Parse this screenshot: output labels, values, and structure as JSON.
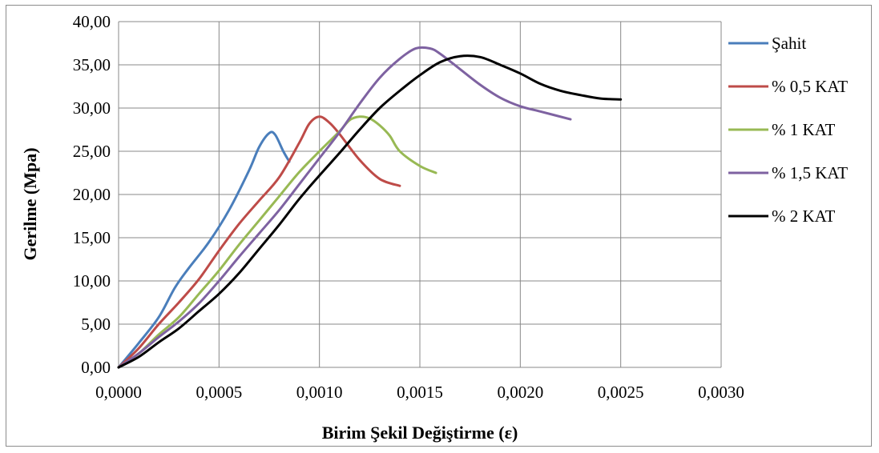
{
  "chart_data": {
    "type": "line",
    "title": "",
    "xlabel": "Birim Şekil Değiştirme (ε)",
    "ylabel": "Gerilme (Mpa)",
    "xlim": [
      0,
      0.003
    ],
    "ylim": [
      0,
      40
    ],
    "x_ticks": [
      0,
      0.0005,
      0.001,
      0.0015,
      0.002,
      0.0025,
      0.003
    ],
    "x_tick_labels": [
      "0,0000",
      "0,0005",
      "0,0010",
      "0,0015",
      "0,0020",
      "0,0025",
      "0,0030"
    ],
    "y_ticks": [
      0,
      5,
      10,
      15,
      20,
      25,
      30,
      35,
      40
    ],
    "y_tick_labels": [
      "0,00",
      "5,00",
      "10,00",
      "15,00",
      "20,00",
      "25,00",
      "30,00",
      "35,00",
      "40,00"
    ],
    "grid": true,
    "legend_position": "right",
    "series": [
      {
        "name": "Şahit",
        "color": "#4a7ebb",
        "points": [
          [
            0,
            0
          ],
          [
            0.0001,
            2.8
          ],
          [
            0.0002,
            5.8
          ],
          [
            0.00028,
            9.2
          ],
          [
            0.00035,
            11.5
          ],
          [
            0.00045,
            14.5
          ],
          [
            0.00055,
            18.2
          ],
          [
            0.00065,
            22.8
          ],
          [
            0.0007,
            25.5
          ],
          [
            0.00075,
            27.1
          ],
          [
            0.00078,
            26.9
          ],
          [
            0.00082,
            25.0
          ],
          [
            0.00085,
            23.8
          ]
        ]
      },
      {
        "name": "% 0,5 KAT",
        "color": "#be4b48",
        "points": [
          [
            0,
            0
          ],
          [
            0.0001,
            2.2
          ],
          [
            0.0002,
            5.0
          ],
          [
            0.0003,
            7.5
          ],
          [
            0.0004,
            10.2
          ],
          [
            0.0005,
            13.5
          ],
          [
            0.0006,
            16.6
          ],
          [
            0.0007,
            19.3
          ],
          [
            0.0008,
            22.0
          ],
          [
            0.0009,
            26.0
          ],
          [
            0.00095,
            28.2
          ],
          [
            0.001,
            29.0
          ],
          [
            0.00105,
            28.3
          ],
          [
            0.0011,
            27.0
          ],
          [
            0.0012,
            24.0
          ],
          [
            0.0013,
            21.8
          ],
          [
            0.0014,
            21.0
          ]
        ]
      },
      {
        "name": "% 1 KAT",
        "color": "#98b954",
        "points": [
          [
            0,
            0
          ],
          [
            0.0001,
            1.6
          ],
          [
            0.0002,
            3.8
          ],
          [
            0.0003,
            5.8
          ],
          [
            0.0004,
            8.5
          ],
          [
            0.0005,
            11.2
          ],
          [
            0.0006,
            14.2
          ],
          [
            0.0007,
            17.0
          ],
          [
            0.0008,
            19.8
          ],
          [
            0.0009,
            22.6
          ],
          [
            0.001,
            25.0
          ],
          [
            0.0011,
            27.3
          ],
          [
            0.00115,
            28.6
          ],
          [
            0.0012,
            29.0
          ],
          [
            0.00125,
            28.8
          ],
          [
            0.0013,
            28.0
          ],
          [
            0.00135,
            26.8
          ],
          [
            0.0014,
            25.0
          ],
          [
            0.0015,
            23.3
          ],
          [
            0.00158,
            22.5
          ]
        ]
      },
      {
        "name": "% 1,5 KAT",
        "color": "#7e62a1",
        "points": [
          [
            0,
            0
          ],
          [
            0.0001,
            1.6
          ],
          [
            0.0002,
            3.5
          ],
          [
            0.0003,
            5.3
          ],
          [
            0.0004,
            7.4
          ],
          [
            0.0005,
            10.0
          ],
          [
            0.0006,
            12.8
          ],
          [
            0.0007,
            15.5
          ],
          [
            0.0008,
            18.2
          ],
          [
            0.0009,
            21.2
          ],
          [
            0.001,
            24.2
          ],
          [
            0.0011,
            27.2
          ],
          [
            0.0012,
            30.5
          ],
          [
            0.0013,
            33.5
          ],
          [
            0.0014,
            35.7
          ],
          [
            0.00148,
            36.9
          ],
          [
            0.00155,
            36.9
          ],
          [
            0.0016,
            36.3
          ],
          [
            0.0017,
            34.5
          ],
          [
            0.0018,
            32.7
          ],
          [
            0.0019,
            31.2
          ],
          [
            0.002,
            30.2
          ],
          [
            0.0021,
            29.6
          ],
          [
            0.00225,
            28.7
          ]
        ]
      },
      {
        "name": "% 2 KAT",
        "color": "#000000",
        "points": [
          [
            0,
            0
          ],
          [
            0.0001,
            1.2
          ],
          [
            0.0002,
            2.9
          ],
          [
            0.0003,
            4.5
          ],
          [
            0.0004,
            6.5
          ],
          [
            0.0005,
            8.5
          ],
          [
            0.0006,
            10.9
          ],
          [
            0.0007,
            13.7
          ],
          [
            0.0008,
            16.5
          ],
          [
            0.0009,
            19.5
          ],
          [
            0.001,
            22.2
          ],
          [
            0.0011,
            24.8
          ],
          [
            0.0012,
            27.5
          ],
          [
            0.0013,
            30.0
          ],
          [
            0.0014,
            32.0
          ],
          [
            0.0015,
            33.8
          ],
          [
            0.0016,
            35.3
          ],
          [
            0.0017,
            36.0
          ],
          [
            0.0018,
            35.9
          ],
          [
            0.0019,
            35.0
          ],
          [
            0.002,
            34.0
          ],
          [
            0.0021,
            32.8
          ],
          [
            0.0022,
            32.0
          ],
          [
            0.0023,
            31.5
          ],
          [
            0.0024,
            31.1
          ],
          [
            0.0025,
            31.0
          ]
        ]
      }
    ]
  }
}
